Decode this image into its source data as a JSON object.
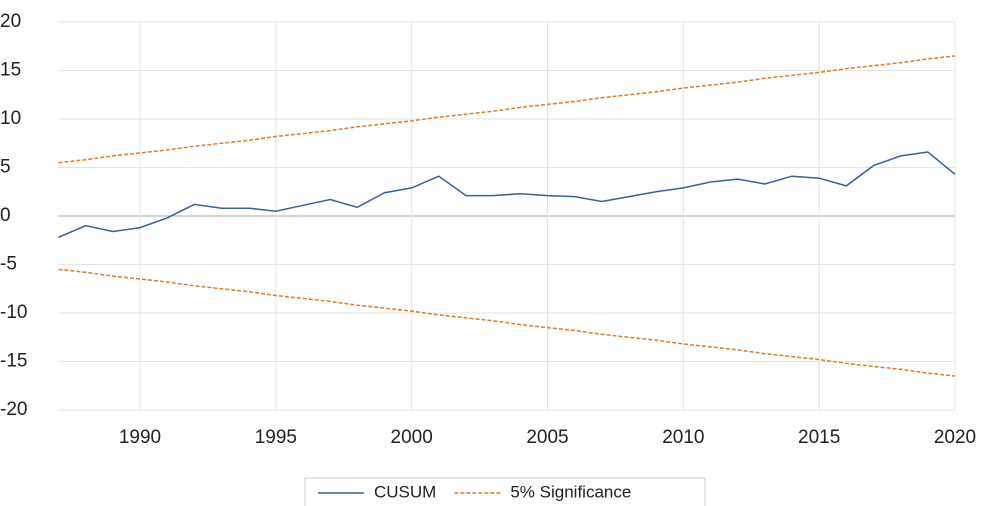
{
  "chart_data": {
    "type": "line",
    "x": [
      1987,
      1988,
      1989,
      1990,
      1991,
      1992,
      1993,
      1994,
      1995,
      1996,
      1997,
      1998,
      1999,
      2000,
      2001,
      2002,
      2003,
      2004,
      2005,
      2006,
      2007,
      2008,
      2009,
      2010,
      2011,
      2012,
      2013,
      2014,
      2015,
      2016,
      2017,
      2018,
      2019,
      2020
    ],
    "series": [
      {
        "name": "CUSUM",
        "color": "#3a5f9f",
        "dash": false,
        "values": [
          -2.2,
          -1.0,
          -1.6,
          -1.2,
          -0.2,
          1.2,
          0.8,
          0.8,
          0.5,
          1.1,
          1.7,
          0.9,
          2.4,
          2.9,
          4.1,
          2.1,
          2.1,
          2.3,
          2.1,
          2.0,
          1.5,
          2.0,
          2.5,
          2.9,
          3.5,
          3.8,
          3.3,
          4.1,
          3.9,
          3.1,
          5.2,
          6.2,
          6.6,
          4.3
        ]
      },
      {
        "name": "5% Significance",
        "color": "#e07b2a",
        "dash": true,
        "values": [
          5.5,
          5.8,
          6.2,
          6.5,
          6.8,
          7.2,
          7.5,
          7.8,
          8.2,
          8.5,
          8.8,
          9.2,
          9.5,
          9.8,
          10.2,
          10.5,
          10.8,
          11.2,
          11.5,
          11.8,
          12.2,
          12.5,
          12.8,
          13.2,
          13.5,
          13.8,
          14.2,
          14.5,
          14.8,
          15.2,
          15.5,
          15.8,
          16.2,
          16.5
        ],
        "lower": [
          -5.5,
          -5.8,
          -6.2,
          -6.5,
          -6.8,
          -7.2,
          -7.5,
          -7.8,
          -8.2,
          -8.5,
          -8.8,
          -9.2,
          -9.5,
          -9.8,
          -10.2,
          -10.5,
          -10.8,
          -11.2,
          -11.5,
          -11.8,
          -12.2,
          -12.5,
          -12.8,
          -13.2,
          -13.5,
          -13.8,
          -14.2,
          -14.5,
          -14.8,
          -15.2,
          -15.5,
          -15.8,
          -16.2,
          -16.5
        ]
      }
    ],
    "xlim": [
      1987,
      2020
    ],
    "xticks": [
      1990,
      1995,
      2000,
      2005,
      2010,
      2015,
      2020
    ],
    "ylim": [
      -20,
      20
    ],
    "yticks": [
      -20,
      -15,
      -10,
      -5,
      0,
      5,
      10,
      15,
      20
    ],
    "grid": true,
    "legend": "bottom"
  }
}
